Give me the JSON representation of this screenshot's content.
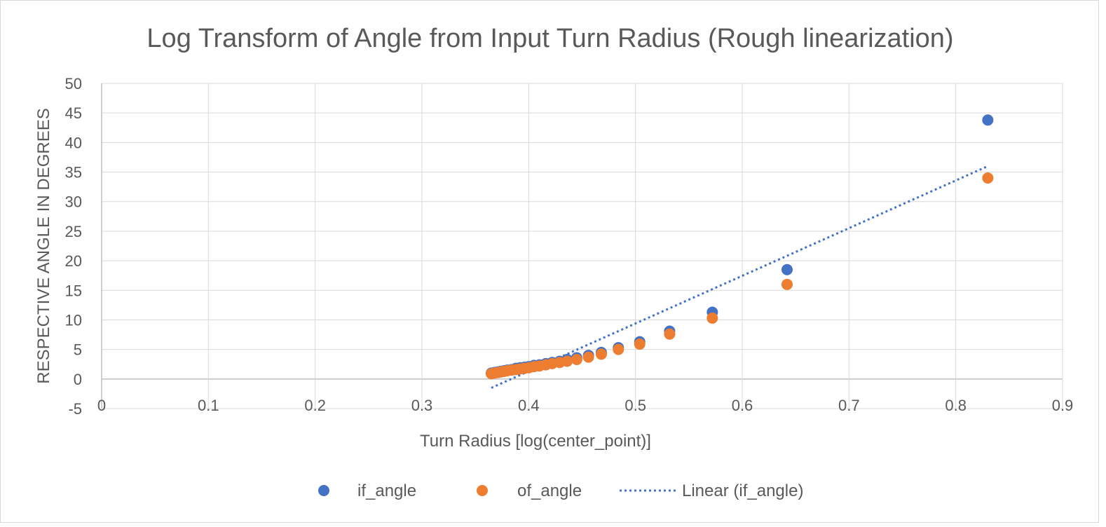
{
  "chart_data": {
    "type": "scatter",
    "title": "Log Transform of Angle from Input Turn Radius (Rough linearization)",
    "xlabel": "Turn Radius [log(center_point)]",
    "ylabel": "RESPECTIVE ANGLE IN DEGREES",
    "xlim": [
      0,
      0.9
    ],
    "ylim": [
      -5,
      50
    ],
    "x_ticks": [
      "0",
      "0.1",
      "0.2",
      "0.3",
      "0.4",
      "0.5",
      "0.6",
      "0.7",
      "0.8",
      "0.9"
    ],
    "y_ticks": [
      "-5",
      "0",
      "5",
      "10",
      "15",
      "20",
      "25",
      "30",
      "35",
      "40",
      "45",
      "50"
    ],
    "grid": true,
    "legend_position": "bottom",
    "series": [
      {
        "name": "if_angle",
        "color": "#4472C4",
        "points": [
          [
            0.365,
            1.0
          ],
          [
            0.368,
            1.1
          ],
          [
            0.371,
            1.2
          ],
          [
            0.374,
            1.3
          ],
          [
            0.377,
            1.4
          ],
          [
            0.38,
            1.5
          ],
          [
            0.384,
            1.6
          ],
          [
            0.388,
            1.8
          ],
          [
            0.392,
            1.9
          ],
          [
            0.396,
            2.0
          ],
          [
            0.4,
            2.1
          ],
          [
            0.405,
            2.3
          ],
          [
            0.41,
            2.4
          ],
          [
            0.416,
            2.6
          ],
          [
            0.422,
            2.8
          ],
          [
            0.429,
            3.0
          ],
          [
            0.436,
            3.3
          ],
          [
            0.445,
            3.6
          ],
          [
            0.456,
            4.0
          ],
          [
            0.468,
            4.5
          ],
          [
            0.484,
            5.3
          ],
          [
            0.504,
            6.3
          ],
          [
            0.532,
            8.1
          ],
          [
            0.572,
            11.3
          ],
          [
            0.642,
            18.5
          ],
          [
            0.83,
            43.8
          ]
        ]
      },
      {
        "name": "of_angle",
        "color": "#ED7D31",
        "points": [
          [
            0.365,
            0.9
          ],
          [
            0.368,
            1.0
          ],
          [
            0.371,
            1.1
          ],
          [
            0.374,
            1.2
          ],
          [
            0.377,
            1.3
          ],
          [
            0.38,
            1.4
          ],
          [
            0.384,
            1.5
          ],
          [
            0.388,
            1.6
          ],
          [
            0.392,
            1.7
          ],
          [
            0.396,
            1.8
          ],
          [
            0.4,
            1.9
          ],
          [
            0.405,
            2.1
          ],
          [
            0.41,
            2.2
          ],
          [
            0.416,
            2.4
          ],
          [
            0.422,
            2.6
          ],
          [
            0.429,
            2.8
          ],
          [
            0.436,
            3.0
          ],
          [
            0.445,
            3.3
          ],
          [
            0.456,
            3.7
          ],
          [
            0.468,
            4.2
          ],
          [
            0.484,
            5.0
          ],
          [
            0.504,
            5.9
          ],
          [
            0.532,
            7.6
          ],
          [
            0.572,
            10.3
          ],
          [
            0.642,
            16.0
          ],
          [
            0.83,
            34.0
          ]
        ]
      }
    ],
    "trendline": {
      "name": "Linear (if_angle)",
      "color": "#4472C4",
      "style": "dotted",
      "x_start": 0.365,
      "y_start": -1.5,
      "x_end": 0.83,
      "y_end": 36.0
    }
  }
}
